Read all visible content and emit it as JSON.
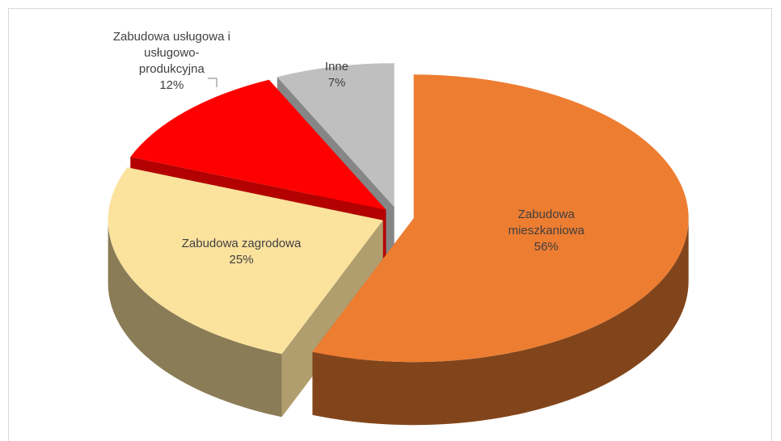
{
  "chart_data": {
    "type": "pie",
    "categories": [
      "Zabudowa mieszkaniowa",
      "Zabudowa zagrodowa",
      "Zabudowa usługowa i usługowo-produkcyjna",
      "Inne"
    ],
    "values": [
      56,
      25,
      12,
      7
    ],
    "value_labels": [
      "56%",
      "25%",
      "12%",
      "7%"
    ],
    "colors": [
      "#ed7d31",
      "#fbe29d",
      "#ff0000",
      "#bfbfbf"
    ]
  }
}
